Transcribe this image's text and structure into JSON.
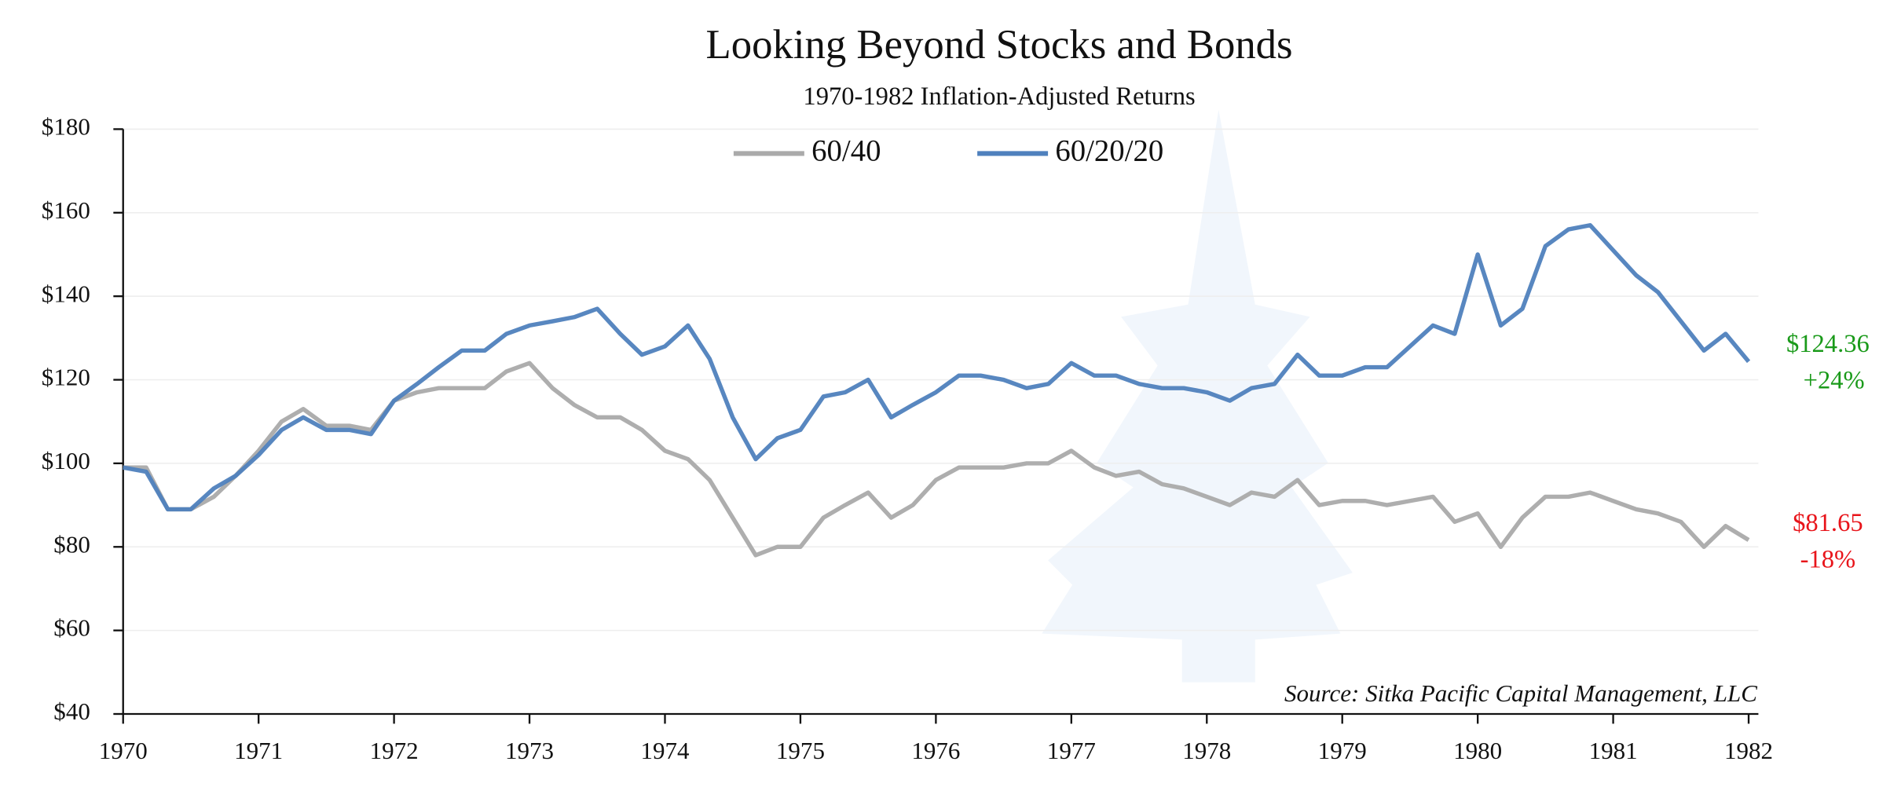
{
  "chart_data": {
    "type": "line",
    "title": "Looking Beyond Stocks and Bonds",
    "subtitle": "1970-1982 Inflation-Adjusted Returns",
    "source": "Source: Sitka Pacific Capital Management, LLC",
    "annotations": [
      "$124.36",
      "+24%",
      "$81.65",
      "-18%"
    ],
    "x": [
      1970,
      1970.17,
      1970.33,
      1970.5,
      1970.67,
      1970.83,
      1971,
      1971.17,
      1971.33,
      1971.5,
      1971.67,
      1971.83,
      1972,
      1972.17,
      1972.33,
      1972.5,
      1972.67,
      1972.83,
      1973,
      1973.17,
      1973.33,
      1973.5,
      1973.67,
      1973.83,
      1974,
      1974.17,
      1974.33,
      1974.5,
      1974.67,
      1974.83,
      1975,
      1975.17,
      1975.33,
      1975.5,
      1975.67,
      1975.83,
      1976,
      1976.17,
      1976.33,
      1976.5,
      1976.67,
      1976.83,
      1977,
      1977.17,
      1977.33,
      1977.5,
      1977.67,
      1977.83,
      1978,
      1978.17,
      1978.33,
      1978.5,
      1978.67,
      1978.83,
      1979,
      1979.17,
      1979.33,
      1979.5,
      1979.67,
      1979.83,
      1980,
      1980.17,
      1980.33,
      1980.5,
      1980.67,
      1980.83,
      1981,
      1981.17,
      1981.33,
      1981.5,
      1981.67,
      1981.83,
      1982
    ],
    "series": [
      {
        "name": "60/40",
        "color": "#aaaaaa",
        "values": [
          99,
          99,
          89,
          89,
          92,
          97,
          103,
          110,
          113,
          109,
          109,
          108,
          115,
          117,
          118,
          118,
          118,
          122,
          124,
          118,
          114,
          111,
          111,
          108,
          103,
          101,
          96,
          87,
          78,
          80,
          80,
          87,
          90,
          93,
          87,
          90,
          96,
          99,
          99,
          99,
          100,
          100,
          103,
          99,
          97,
          98,
          95,
          94,
          92,
          90,
          93,
          92,
          96,
          90,
          91,
          91,
          90,
          91,
          92,
          86,
          88,
          80,
          87,
          92,
          92,
          93,
          91,
          89,
          88,
          86,
          80,
          85,
          81.65
        ]
      },
      {
        "name": "60/20/20",
        "color": "#4f81bd",
        "values": [
          99,
          98,
          89,
          89,
          94,
          97,
          102,
          108,
          111,
          108,
          108,
          107,
          115,
          119,
          123,
          127,
          127,
          131,
          133,
          134,
          135,
          137,
          131,
          126,
          128,
          133,
          125,
          111,
          101,
          106,
          108,
          116,
          117,
          120,
          111,
          114,
          117,
          121,
          121,
          120,
          118,
          119,
          124,
          121,
          121,
          119,
          118,
          118,
          117,
          115,
          118,
          119,
          126,
          121,
          121,
          123,
          123,
          128,
          133,
          131,
          150,
          133,
          137,
          152,
          156,
          157,
          151,
          145,
          141,
          134,
          127,
          131,
          124.36
        ]
      }
    ],
    "xlim": [
      1970,
      1982
    ],
    "xticks": [
      1970,
      1971,
      1972,
      1973,
      1974,
      1975,
      1976,
      1977,
      1978,
      1979,
      1980,
      1981,
      1982
    ],
    "ylim": [
      40,
      180
    ],
    "yticks": [
      {
        "value": 40,
        "label": "$40"
      },
      {
        "value": 60,
        "label": "$60"
      },
      {
        "value": 80,
        "label": "$80"
      },
      {
        "value": 100,
        "label": "$100"
      },
      {
        "value": 120,
        "label": "$120"
      },
      {
        "value": 140,
        "label": "$140"
      },
      {
        "value": 160,
        "label": "$160"
      },
      {
        "value": 180,
        "label": "$180"
      }
    ],
    "grid": true
  }
}
